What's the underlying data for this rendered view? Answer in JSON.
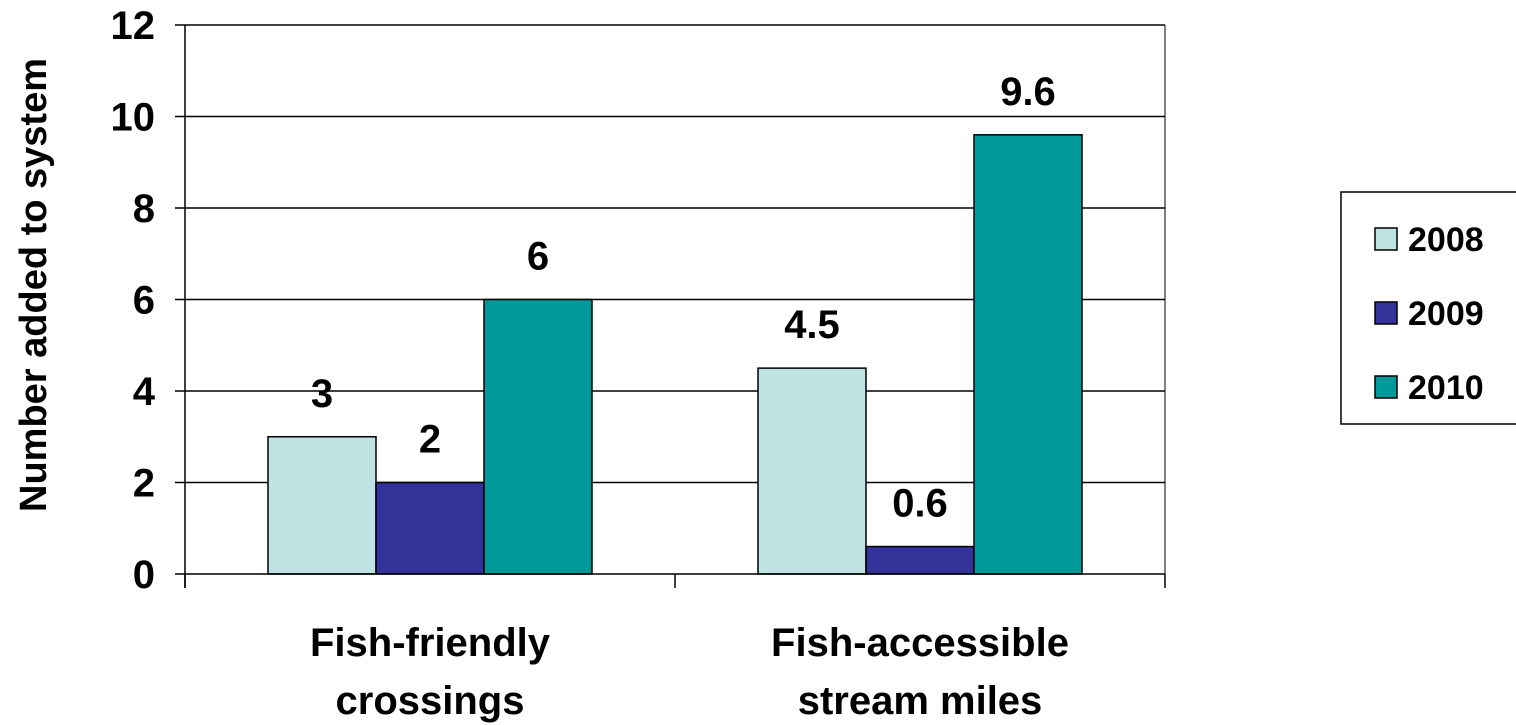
{
  "chart_data": {
    "type": "bar",
    "categories": [
      [
        "Fish-friendly",
        "crossings"
      ],
      [
        "Fish-accessible",
        "stream miles"
      ]
    ],
    "series": [
      {
        "name": "2008",
        "values": [
          3,
          4.5
        ],
        "color": "#bfe3e3"
      },
      {
        "name": "2009",
        "values": [
          2,
          0.6
        ],
        "color": "#333399"
      },
      {
        "name": "2010",
        "values": [
          6,
          9.6
        ],
        "color": "#009999"
      }
    ],
    "data_labels": [
      [
        "3",
        "4.5"
      ],
      [
        "2",
        "0.6"
      ],
      [
        "6",
        "9.6"
      ]
    ],
    "title": "",
    "xlabel": "",
    "ylabel": "Number added to system",
    "ylim": [
      0,
      12
    ],
    "yticks": [
      0,
      2,
      4,
      6,
      8,
      10,
      12
    ],
    "grid": true,
    "legend_position": "right"
  }
}
